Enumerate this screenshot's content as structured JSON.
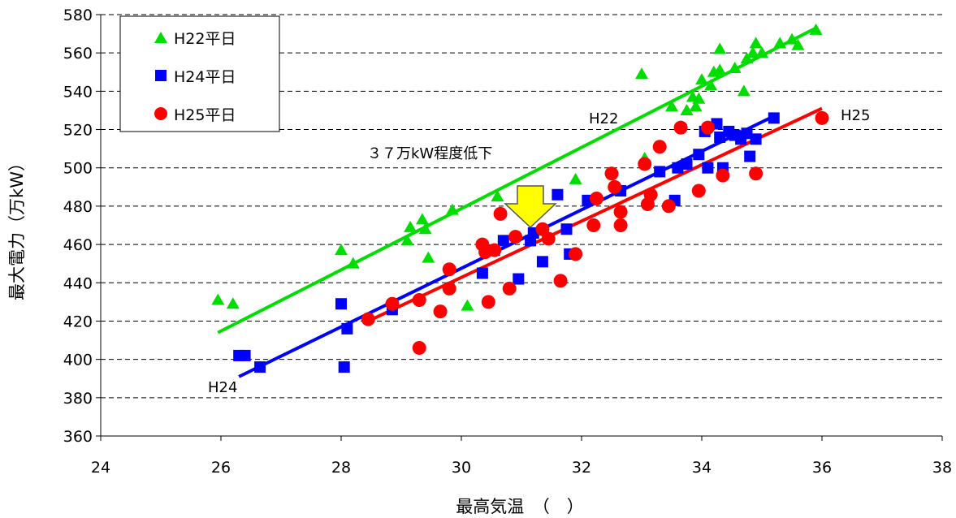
{
  "chart_data": {
    "type": "scatter",
    "xlabel": "最高気温　（　）",
    "ylabel": "最大電力（万kW）",
    "xlim": [
      24,
      38
    ],
    "ylim": [
      360,
      580
    ],
    "x_ticks": [
      24,
      26,
      28,
      30,
      32,
      34,
      36,
      38
    ],
    "y_ticks": [
      360,
      380,
      400,
      420,
      440,
      460,
      480,
      500,
      520,
      540,
      560,
      580
    ],
    "grid": "horizontal-dashed",
    "legend_position": "top-left",
    "series": [
      {
        "name": "H22平日",
        "marker": "triangle",
        "color": "#00dd00",
        "points": [
          [
            25.95,
            431
          ],
          [
            26.2,
            429
          ],
          [
            28.0,
            457
          ],
          [
            28.2,
            450
          ],
          [
            29.1,
            462
          ],
          [
            29.15,
            469
          ],
          [
            29.35,
            473
          ],
          [
            29.4,
            468
          ],
          [
            29.45,
            453
          ],
          [
            29.85,
            478
          ],
          [
            30.1,
            428
          ],
          [
            30.6,
            485
          ],
          [
            31.9,
            494
          ],
          [
            33.0,
            549
          ],
          [
            33.05,
            505
          ],
          [
            33.5,
            532
          ],
          [
            33.75,
            530
          ],
          [
            33.85,
            537
          ],
          [
            33.9,
            532
          ],
          [
            33.95,
            536
          ],
          [
            34.0,
            546
          ],
          [
            34.15,
            543
          ],
          [
            34.2,
            550
          ],
          [
            34.3,
            562
          ],
          [
            34.3,
            551
          ],
          [
            34.55,
            552
          ],
          [
            34.7,
            540
          ],
          [
            34.75,
            557
          ],
          [
            34.85,
            560
          ],
          [
            34.9,
            565
          ],
          [
            35.0,
            560
          ],
          [
            35.3,
            565
          ],
          [
            35.5,
            567
          ],
          [
            35.6,
            564
          ],
          [
            35.9,
            572
          ]
        ],
        "trend": [
          [
            25.95,
            414
          ],
          [
            35.9,
            573
          ]
        ]
      },
      {
        "name": "H24平日",
        "marker": "square",
        "color": "#0000ff",
        "points": [
          [
            26.3,
            402
          ],
          [
            26.4,
            402
          ],
          [
            26.65,
            396
          ],
          [
            28.0,
            429
          ],
          [
            28.05,
            396
          ],
          [
            28.1,
            416
          ],
          [
            28.85,
            426
          ],
          [
            30.35,
            445
          ],
          [
            30.55,
            457
          ],
          [
            30.7,
            462
          ],
          [
            30.95,
            442
          ],
          [
            31.15,
            462
          ],
          [
            31.2,
            466
          ],
          [
            31.35,
            451
          ],
          [
            31.6,
            486
          ],
          [
            31.75,
            468
          ],
          [
            31.8,
            455
          ],
          [
            32.1,
            483
          ],
          [
            32.65,
            488
          ],
          [
            33.3,
            498
          ],
          [
            33.55,
            483
          ],
          [
            33.6,
            500
          ],
          [
            33.75,
            502
          ],
          [
            33.95,
            507
          ],
          [
            34.05,
            519
          ],
          [
            34.1,
            500
          ],
          [
            34.25,
            523
          ],
          [
            34.3,
            516
          ],
          [
            34.35,
            500
          ],
          [
            34.45,
            519
          ],
          [
            34.55,
            517
          ],
          [
            34.65,
            515
          ],
          [
            34.75,
            518
          ],
          [
            34.8,
            506
          ],
          [
            34.9,
            515
          ],
          [
            35.2,
            526
          ]
        ],
        "trend": [
          [
            26.3,
            391
          ],
          [
            35.2,
            527
          ]
        ]
      },
      {
        "name": "H25平日",
        "marker": "circle",
        "color": "#ff0000",
        "points": [
          [
            28.45,
            421
          ],
          [
            28.85,
            429
          ],
          [
            29.3,
            406
          ],
          [
            29.3,
            431
          ],
          [
            29.65,
            425
          ],
          [
            29.8,
            437
          ],
          [
            29.8,
            447
          ],
          [
            30.35,
            460
          ],
          [
            30.4,
            456
          ],
          [
            30.45,
            430
          ],
          [
            30.55,
            457
          ],
          [
            30.65,
            476
          ],
          [
            30.8,
            437
          ],
          [
            30.9,
            464
          ],
          [
            31.35,
            468
          ],
          [
            31.45,
            463
          ],
          [
            31.65,
            441
          ],
          [
            31.9,
            455
          ],
          [
            32.2,
            470
          ],
          [
            32.25,
            484
          ],
          [
            32.5,
            497
          ],
          [
            32.55,
            490
          ],
          [
            32.65,
            477
          ],
          [
            32.65,
            470
          ],
          [
            33.05,
            502
          ],
          [
            33.1,
            481
          ],
          [
            33.15,
            486
          ],
          [
            33.3,
            511
          ],
          [
            33.45,
            480
          ],
          [
            33.65,
            521
          ],
          [
            33.95,
            488
          ],
          [
            34.1,
            521
          ],
          [
            34.35,
            496
          ],
          [
            34.9,
            497
          ],
          [
            36.0,
            526
          ]
        ],
        "trend": [
          [
            28.45,
            420
          ],
          [
            36.0,
            531
          ]
        ]
      }
    ],
    "annotations": {
      "drop_text": "３７万kW程度低下",
      "h22": "H22",
      "h24": "H24",
      "h25": "H25"
    }
  }
}
